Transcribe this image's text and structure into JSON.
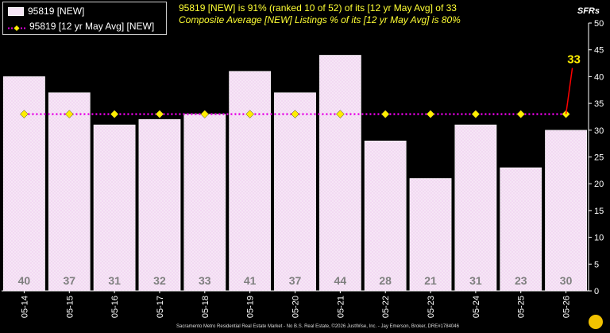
{
  "title_line1": "95819 [NEW] is 91% (ranked 10 of 52)  of its [12 yr May Avg] of 33",
  "title_line2": "Composite Average [NEW] Listings % of its [12 yr May Avg] is 80%",
  "footer": "Sacramento Metro Residential Real Estate Market - No B.S. Real Estate, ©2026 JustWise, Inc. - Jay Emerson, Broker, DRE#1784046",
  "colors": {
    "bar": "#f6e6f6",
    "avg_line": "#e600e6",
    "marker": "#ffee00",
    "callout": "#ff0000",
    "title": "#ffff33"
  },
  "chart_data": {
    "type": "bar",
    "categories": [
      "05-14",
      "05-15",
      "05-16",
      "05-17",
      "05-18",
      "05-19",
      "05-20",
      "05-21",
      "05-22",
      "05-23",
      "05-24",
      "05-25",
      "05-26"
    ],
    "series": [
      {
        "name": "95819 [NEW]",
        "type": "bar",
        "values": [
          40,
          37,
          31,
          32,
          33,
          41,
          37,
          44,
          28,
          21,
          31,
          23,
          30
        ]
      },
      {
        "name": "95819 [12 yr May Avg] [NEW]",
        "type": "line",
        "values": [
          33,
          33,
          33,
          33,
          33,
          33,
          33,
          33,
          33,
          33,
          33,
          33,
          33
        ]
      }
    ],
    "callout": {
      "label": "33",
      "category": "05-26"
    },
    "ylabel": "SFRs",
    "ylim": [
      0,
      50
    ],
    "yticks": [
      0,
      5,
      10,
      15,
      20,
      25,
      30,
      35,
      40,
      45,
      50
    ],
    "grid": false,
    "legend": "top-left"
  }
}
